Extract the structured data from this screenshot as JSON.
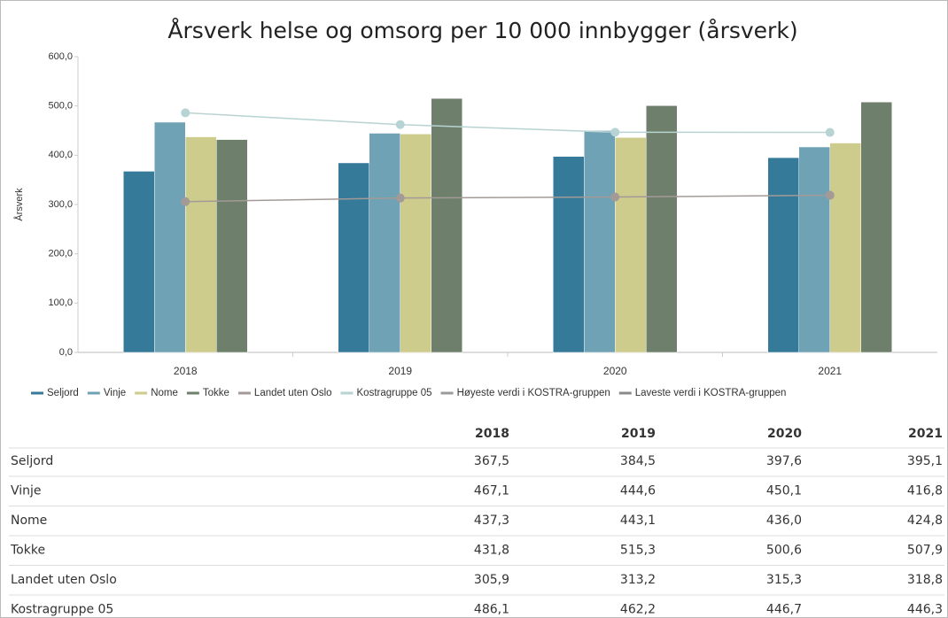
{
  "chart_data": {
    "type": "bar",
    "title": "Årsverk helse og omsorg per 10 000 innbygger (årsverk)",
    "y_label": "Årsverk",
    "categories": [
      "2018",
      "2019",
      "2020",
      "2021"
    ],
    "ylim": [
      0,
      600
    ],
    "yticks": [
      {
        "value": 0,
        "label": "0,0"
      },
      {
        "value": 100,
        "label": "100,0"
      },
      {
        "value": 200,
        "label": "200,0"
      },
      {
        "value": 300,
        "label": "300,0"
      },
      {
        "value": 400,
        "label": "400,0"
      },
      {
        "value": 500,
        "label": "500,0"
      },
      {
        "value": 600,
        "label": "600,0"
      }
    ],
    "series": [
      {
        "name": "Seljord",
        "type": "bar",
        "color": "#367a99",
        "values": [
          367.5,
          384.5,
          397.6,
          395.1
        ],
        "value_labels": [
          "367,5",
          "384,5",
          "397,6",
          "395,1"
        ]
      },
      {
        "name": "Vinje",
        "type": "bar",
        "color": "#6fa2b4",
        "values": [
          467.1,
          444.6,
          450.1,
          416.8
        ],
        "value_labels": [
          "467,1",
          "444,6",
          "450,1",
          "416,8"
        ]
      },
      {
        "name": "Nome",
        "type": "bar",
        "color": "#cdcc8d",
        "values": [
          437.3,
          443.1,
          436.0,
          424.8
        ],
        "value_labels": [
          "437,3",
          "443,1",
          "436,0",
          "424,8"
        ]
      },
      {
        "name": "Tokke",
        "type": "bar",
        "color": "#6e806b",
        "values": [
          431.8,
          515.3,
          500.6,
          507.9
        ],
        "value_labels": [
          "431,8",
          "515,3",
          "500,6",
          "507,9"
        ]
      },
      {
        "name": "Landet uten Oslo",
        "type": "line",
        "color": "#a39a97",
        "values": [
          305.9,
          313.2,
          315.3,
          318.8
        ],
        "value_labels": [
          "305,9",
          "313,2",
          "315,3",
          "318,8"
        ]
      },
      {
        "name": "Kostragruppe 05",
        "type": "line",
        "color": "#b8d3d3",
        "values": [
          486.1,
          462.2,
          446.7,
          446.3
        ],
        "value_labels": [
          "486,1",
          "462,2",
          "446,7",
          "446,3"
        ]
      },
      {
        "name": "Høyeste verdi i KOSTRA-gruppen",
        "type": "line",
        "color": "#9a9a9a",
        "values": [
          null,
          null,
          null,
          null
        ]
      },
      {
        "name": "Laveste verdi i KOSTRA-gruppen",
        "type": "line",
        "color": "#8a8a8a",
        "values": [
          null,
          null,
          null,
          null
        ]
      }
    ]
  }
}
